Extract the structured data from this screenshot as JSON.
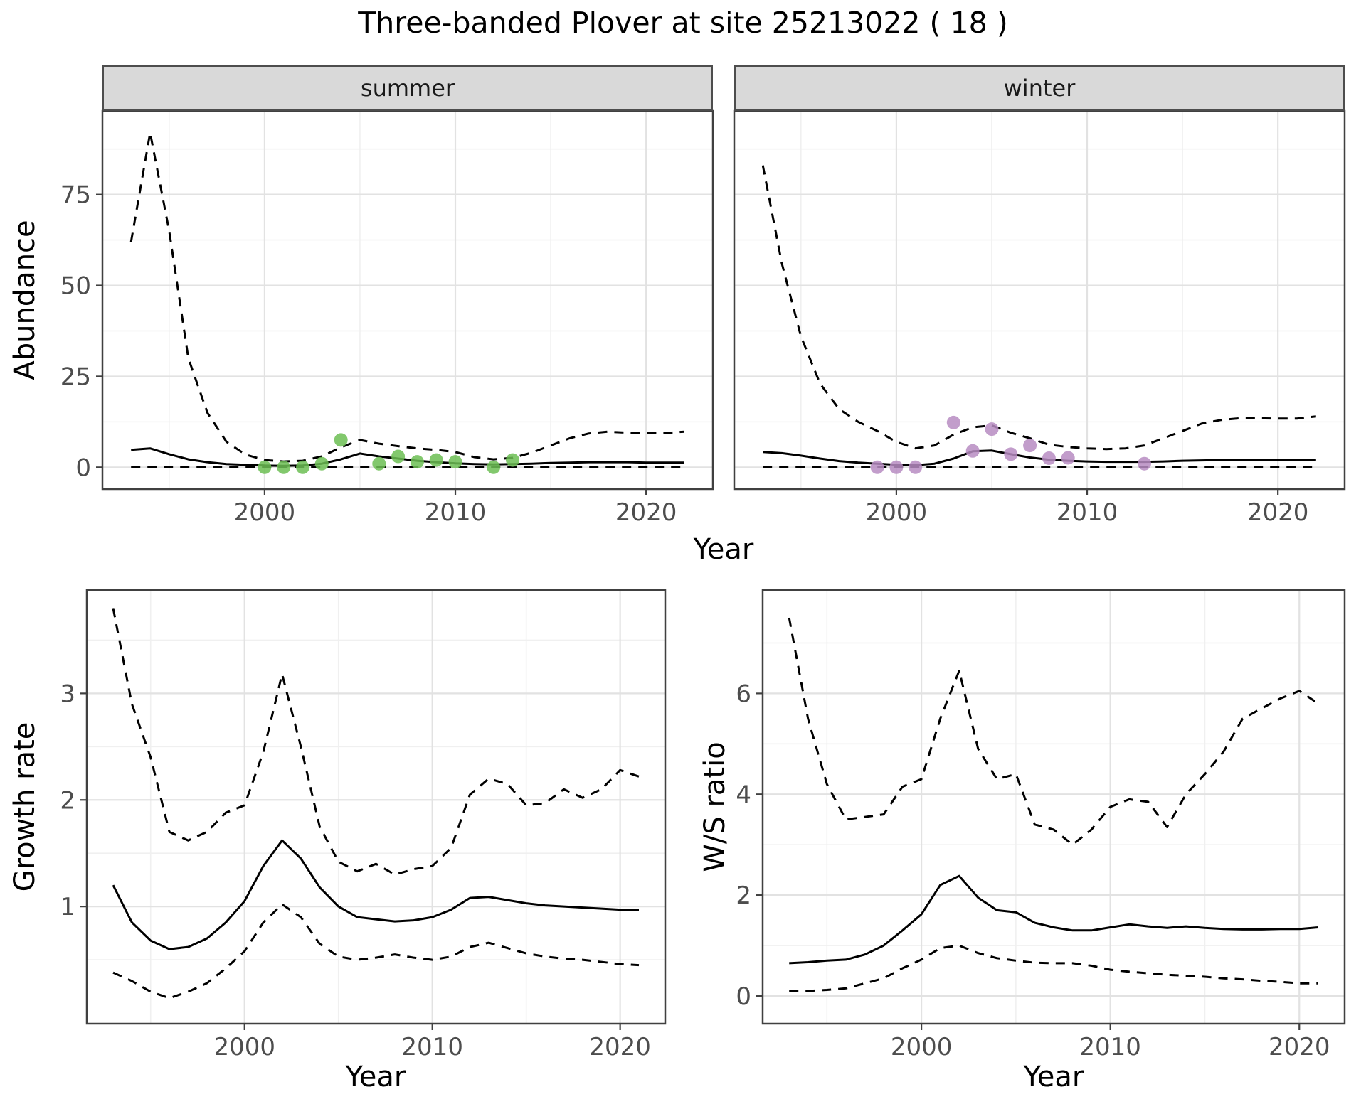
{
  "title": "Three-banded Plover at site 25213022 ( 18 )",
  "colors": {
    "line": "#000000",
    "grid_major": "#E2E2E2",
    "grid_minor": "#F0F0F0",
    "strip_bg": "#D9D9D9",
    "panel_border": "#404040",
    "axis_text": "#4D4D4D",
    "summer_point": "#6CBE53",
    "winter_point": "#B78CC2"
  },
  "chart_data": [
    {
      "id": "abundance-summer",
      "type": "line",
      "facet": "summer",
      "xlabel": "Year",
      "ylabel": "Abundance",
      "xlim": [
        1991.5,
        2023.5
      ],
      "ylim": [
        -6,
        98
      ],
      "xticks": [
        2000,
        2010,
        2020
      ],
      "yticks": [
        0,
        25,
        50,
        75
      ],
      "grid": true,
      "legend": "none",
      "x": [
        1993,
        1994,
        1995,
        1996,
        1997,
        1998,
        1999,
        2000,
        2001,
        2002,
        2003,
        2004,
        2005,
        2006,
        2007,
        2008,
        2009,
        2010,
        2011,
        2012,
        2013,
        2014,
        2015,
        2016,
        2017,
        2018,
        2019,
        2020,
        2021,
        2022
      ],
      "series": [
        {
          "name": "median",
          "linestyle": "solid",
          "values": [
            4.8,
            5.2,
            3.6,
            2.2,
            1.4,
            0.9,
            0.7,
            0.5,
            0.4,
            0.5,
            1.0,
            2.2,
            3.8,
            3.0,
            2.4,
            1.8,
            1.4,
            1.1,
            0.9,
            0.8,
            0.9,
            1.0,
            1.2,
            1.3,
            1.4,
            1.4,
            1.4,
            1.3,
            1.3,
            1.3
          ]
        },
        {
          "name": "upper-ci",
          "linestyle": "dashed",
          "values": [
            62,
            92,
            65,
            30,
            15,
            7,
            3.5,
            2,
            1.6,
            1.8,
            3,
            5.5,
            7.5,
            6.5,
            5.8,
            5.2,
            4.8,
            4.2,
            2.8,
            2.2,
            2.6,
            4,
            6,
            8,
            9.3,
            9.8,
            9.5,
            9.4,
            9.4,
            9.8
          ]
        },
        {
          "name": "lower-ci",
          "linestyle": "dashed",
          "values": [
            0,
            0,
            0,
            0,
            0,
            0,
            0,
            0,
            0,
            0,
            0,
            0,
            0,
            0,
            0,
            0,
            0,
            0,
            0,
            0,
            0,
            0,
            0,
            0,
            0,
            0,
            0,
            0,
            0,
            0
          ]
        }
      ],
      "points": {
        "name": "observed-summer",
        "color": "#6CBE53",
        "x": [
          2000,
          2001,
          2002,
          2003,
          2004,
          2006,
          2007,
          2008,
          2009,
          2010,
          2012,
          2013
        ],
        "y": [
          0,
          0,
          0,
          1,
          7.5,
          1,
          3,
          1.5,
          2,
          1.5,
          0,
          2
        ]
      }
    },
    {
      "id": "abundance-winter",
      "type": "line",
      "facet": "winter",
      "xlabel": "Year",
      "ylabel": "Abundance",
      "xlim": [
        1991.5,
        2023.5
      ],
      "ylim": [
        -6,
        98
      ],
      "xticks": [
        2000,
        2010,
        2020
      ],
      "yticks": [
        0,
        25,
        50,
        75
      ],
      "grid": true,
      "legend": "none",
      "x": [
        1993,
        1994,
        1995,
        1996,
        1997,
        1998,
        1999,
        2000,
        2001,
        2002,
        2003,
        2004,
        2005,
        2006,
        2007,
        2008,
        2009,
        2010,
        2011,
        2012,
        2013,
        2014,
        2015,
        2016,
        2017,
        2018,
        2019,
        2020,
        2021,
        2022
      ],
      "series": [
        {
          "name": "median",
          "linestyle": "solid",
          "values": [
            4.2,
            3.9,
            3.2,
            2.4,
            1.7,
            1.3,
            1.0,
            0.7,
            0.6,
            1.0,
            2.4,
            4.4,
            4.6,
            3.6,
            2.7,
            2.1,
            1.8,
            1.6,
            1.5,
            1.5,
            1.5,
            1.6,
            1.8,
            1.9,
            2.0,
            2.0,
            2.0,
            2.0,
            2.0,
            2.0
          ]
        },
        {
          "name": "upper-ci",
          "linestyle": "dashed",
          "values": [
            83,
            56,
            36,
            23,
            16,
            12.5,
            10,
            7,
            5.2,
            6,
            9,
            11,
            11.5,
            9.5,
            8,
            6.2,
            5.6,
            5.2,
            5,
            5.2,
            6,
            8,
            10,
            12,
            13,
            13.5,
            13.5,
            13.4,
            13.4,
            14
          ]
        },
        {
          "name": "lower-ci",
          "linestyle": "dashed",
          "values": [
            0,
            0,
            0,
            0,
            0,
            0,
            0,
            0,
            0,
            0,
            0,
            0,
            0,
            0,
            0,
            0,
            0,
            0,
            0,
            0,
            0,
            0,
            0,
            0,
            0,
            0,
            0,
            0,
            0,
            0
          ]
        }
      ],
      "points": {
        "name": "observed-winter",
        "color": "#B78CC2",
        "x": [
          1999,
          2000,
          2001,
          2003,
          2004,
          2005,
          2006,
          2007,
          2008,
          2009,
          2013
        ],
        "y": [
          0,
          0,
          0,
          12.3,
          4.5,
          10.5,
          3.6,
          6,
          2.5,
          2.6,
          1
        ]
      }
    },
    {
      "id": "growth-rate",
      "type": "line",
      "facet": "",
      "xlabel": "Year",
      "ylabel": "Growth rate",
      "xlim": [
        1991.6,
        2022.4
      ],
      "ylim": [
        -0.1,
        3.97
      ],
      "xticks": [
        2000,
        2010,
        2020
      ],
      "yticks": [
        1,
        2,
        3
      ],
      "grid": true,
      "legend": "none",
      "x": [
        1993,
        1994,
        1995,
        1996,
        1997,
        1998,
        1999,
        2000,
        2001,
        2002,
        2003,
        2004,
        2005,
        2006,
        2007,
        2008,
        2009,
        2010,
        2011,
        2012,
        2013,
        2014,
        2015,
        2016,
        2017,
        2018,
        2019,
        2020,
        2021
      ],
      "series": [
        {
          "name": "median",
          "linestyle": "solid",
          "values": [
            1.2,
            0.85,
            0.68,
            0.6,
            0.62,
            0.7,
            0.85,
            1.05,
            1.38,
            1.62,
            1.45,
            1.18,
            1.0,
            0.9,
            0.88,
            0.86,
            0.87,
            0.9,
            0.97,
            1.08,
            1.09,
            1.06,
            1.03,
            1.01,
            1.0,
            0.99,
            0.98,
            0.97,
            0.97
          ]
        },
        {
          "name": "upper-ci",
          "linestyle": "dashed",
          "values": [
            3.8,
            2.9,
            2.4,
            1.7,
            1.62,
            1.7,
            1.88,
            1.95,
            2.45,
            3.18,
            2.5,
            1.75,
            1.42,
            1.33,
            1.4,
            1.3,
            1.35,
            1.38,
            1.55,
            2.05,
            2.2,
            2.15,
            1.95,
            1.97,
            2.1,
            2.02,
            2.1,
            2.28,
            2.22
          ]
        },
        {
          "name": "lower-ci",
          "linestyle": "dashed",
          "values": [
            0.38,
            0.3,
            0.2,
            0.14,
            0.2,
            0.28,
            0.42,
            0.58,
            0.85,
            1.02,
            0.9,
            0.65,
            0.53,
            0.5,
            0.52,
            0.55,
            0.52,
            0.5,
            0.53,
            0.62,
            0.66,
            0.61,
            0.56,
            0.53,
            0.51,
            0.5,
            0.48,
            0.46,
            0.45
          ]
        }
      ],
      "points": null
    },
    {
      "id": "ws-ratio",
      "type": "line",
      "facet": "",
      "xlabel": "Year",
      "ylabel": "W/S ratio",
      "xlim": [
        1991.6,
        2022.4
      ],
      "ylim": [
        -0.55,
        8.05
      ],
      "xticks": [
        2000,
        2010,
        2020
      ],
      "yticks": [
        0,
        2,
        4,
        6
      ],
      "grid": true,
      "legend": "none",
      "x": [
        1993,
        1994,
        1995,
        1996,
        1997,
        1998,
        1999,
        2000,
        2001,
        2002,
        2003,
        2004,
        2005,
        2006,
        2007,
        2008,
        2009,
        2010,
        2011,
        2012,
        2013,
        2014,
        2015,
        2016,
        2017,
        2018,
        2019,
        2020,
        2021
      ],
      "series": [
        {
          "name": "median",
          "linestyle": "solid",
          "values": [
            0.65,
            0.67,
            0.7,
            0.72,
            0.82,
            1.0,
            1.3,
            1.62,
            2.2,
            2.38,
            1.95,
            1.7,
            1.66,
            1.45,
            1.36,
            1.3,
            1.3,
            1.36,
            1.42,
            1.38,
            1.35,
            1.38,
            1.35,
            1.33,
            1.32,
            1.32,
            1.33,
            1.33,
            1.36
          ]
        },
        {
          "name": "upper-ci",
          "linestyle": "dashed",
          "values": [
            7.5,
            5.5,
            4.2,
            3.5,
            3.55,
            3.6,
            4.15,
            4.3,
            5.5,
            6.45,
            4.9,
            4.3,
            4.4,
            3.4,
            3.3,
            3.0,
            3.3,
            3.75,
            3.9,
            3.85,
            3.35,
            4.0,
            4.4,
            4.85,
            5.5,
            5.7,
            5.9,
            6.05,
            5.8
          ]
        },
        {
          "name": "lower-ci",
          "linestyle": "dashed",
          "values": [
            0.1,
            0.1,
            0.12,
            0.15,
            0.25,
            0.35,
            0.55,
            0.72,
            0.95,
            1.0,
            0.85,
            0.75,
            0.7,
            0.66,
            0.65,
            0.65,
            0.6,
            0.52,
            0.48,
            0.45,
            0.42,
            0.4,
            0.38,
            0.35,
            0.33,
            0.3,
            0.28,
            0.25,
            0.25
          ]
        }
      ],
      "points": null
    }
  ]
}
